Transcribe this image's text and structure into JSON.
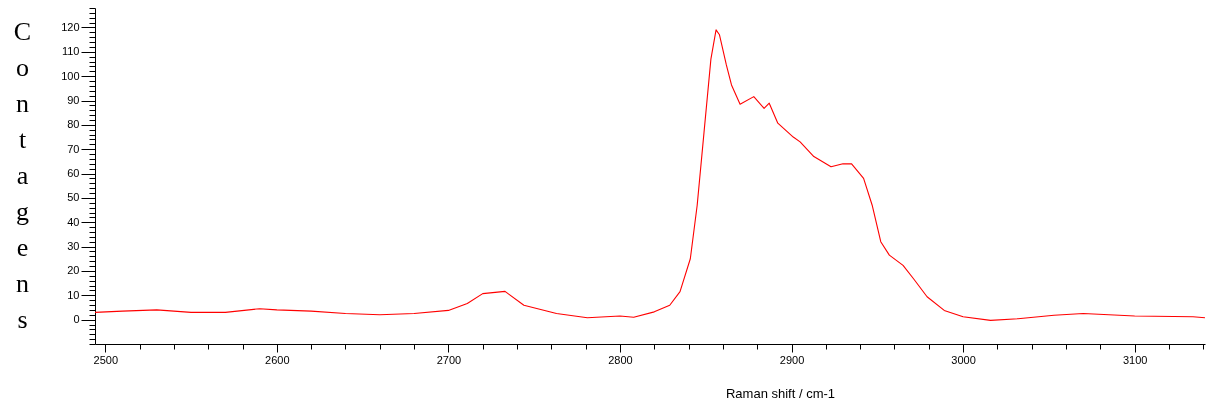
{
  "chart_data": {
    "type": "line",
    "xlabel": "Raman shift / cm-1",
    "ylabel": "Contagens",
    "x": [
      2494,
      2510,
      2530,
      2550,
      2570,
      2590,
      2600,
      2620,
      2640,
      2660,
      2680,
      2700,
      2711,
      2720,
      2733,
      2744,
      2763,
      2781,
      2800,
      2808,
      2820,
      2829,
      2835,
      2841,
      2845,
      2849,
      2853,
      2856,
      2858,
      2862,
      2865,
      2870,
      2878,
      2884,
      2887,
      2892,
      2901,
      2905,
      2913,
      2923,
      2930,
      2935,
      2942,
      2947,
      2952,
      2957,
      2965,
      2971,
      2979,
      2989,
      3000,
      3016,
      3032,
      3053,
      3070,
      3100,
      3134,
      3141
    ],
    "series": [
      {
        "color": "#ff0000",
        "values": [
          3,
          3.5,
          4,
          3,
          3,
          4.5,
          4,
          3.5,
          2.5,
          2,
          2.5,
          3.8,
          6.6,
          10.7,
          11.6,
          5.9,
          2.5,
          0.8,
          1.5,
          1,
          3.2,
          5.9,
          11.5,
          25,
          47,
          77,
          107,
          119,
          117,
          104.6,
          96.4,
          88.5,
          91.6,
          86.8,
          88.9,
          80.7,
          75,
          73,
          67,
          62.8,
          64,
          64,
          58,
          47,
          32,
          26.5,
          22.3,
          16.9,
          9.4,
          3.8,
          1.2,
          -0.3,
          0.4,
          1.8,
          2.5,
          1.5,
          1.2,
          0.8
        ]
      }
    ],
    "xlim": [
      2494,
      3141
    ],
    "ylim": [
      -10,
      128
    ],
    "xticks": [
      2500,
      {
        "value": 2520,
        "label": null
      },
      {
        "value": 2540,
        "label": null
      },
      {
        "value": 2560,
        "label": null
      },
      {
        "value": 2580,
        "label": null
      },
      2600,
      {
        "value": 2620,
        "label": null
      },
      {
        "value": 2640,
        "label": null
      },
      {
        "value": 2660,
        "label": null
      },
      {
        "value": 2680,
        "label": null
      },
      2700,
      {
        "value": 2720,
        "label": null
      },
      {
        "value": 2740,
        "label": null
      },
      {
        "value": 2760,
        "label": null
      },
      {
        "value": 2780,
        "label": null
      },
      2800,
      {
        "value": 2820,
        "label": null
      },
      {
        "value": 2840,
        "label": null
      },
      {
        "value": 2860,
        "label": null
      },
      {
        "value": 2880,
        "label": null
      },
      2900,
      {
        "value": 2920,
        "label": null
      },
      {
        "value": 2940,
        "label": null
      },
      {
        "value": 2960,
        "label": null
      },
      {
        "value": 2980,
        "label": null
      },
      3000,
      {
        "value": 3020,
        "label": null
      },
      {
        "value": 3040,
        "label": null
      },
      {
        "value": 3060,
        "label": null
      },
      {
        "value": 3080,
        "label": null
      },
      3100,
      {
        "value": 3120,
        "label": null
      },
      {
        "value": 3140,
        "label": null
      }
    ],
    "yticks": [
      {
        "value": -10,
        "label": null
      },
      {
        "value": -8,
        "label": null
      },
      {
        "value": -6,
        "label": null
      },
      {
        "value": -4,
        "label": null
      },
      {
        "value": -2,
        "label": null
      },
      0,
      {
        "value": 2,
        "label": null
      },
      {
        "value": 4,
        "label": null
      },
      {
        "value": 6,
        "label": null
      },
      {
        "value": 8,
        "label": null
      },
      10,
      {
        "value": 12,
        "label": null
      },
      {
        "value": 14,
        "label": null
      },
      {
        "value": 16,
        "label": null
      },
      {
        "value": 18,
        "label": null
      },
      20,
      {
        "value": 22,
        "label": null
      },
      {
        "value": 24,
        "label": null
      },
      {
        "value": 26,
        "label": null
      },
      {
        "value": 28,
        "label": null
      },
      30,
      {
        "value": 32,
        "label": null
      },
      {
        "value": 34,
        "label": null
      },
      {
        "value": 36,
        "label": null
      },
      {
        "value": 38,
        "label": null
      },
      40,
      {
        "value": 42,
        "label": null
      },
      {
        "value": 44,
        "label": null
      },
      {
        "value": 46,
        "label": null
      },
      {
        "value": 48,
        "label": null
      },
      50,
      {
        "value": 52,
        "label": null
      },
      {
        "value": 54,
        "label": null
      },
      {
        "value": 56,
        "label": null
      },
      {
        "value": 58,
        "label": null
      },
      60,
      {
        "value": 62,
        "label": null
      },
      {
        "value": 64,
        "label": null
      },
      {
        "value": 66,
        "label": null
      },
      {
        "value": 68,
        "label": null
      },
      70,
      {
        "value": 72,
        "label": null
      },
      {
        "value": 74,
        "label": null
      },
      {
        "value": 76,
        "label": null
      },
      {
        "value": 78,
        "label": null
      },
      80,
      {
        "value": 82,
        "label": null
      },
      {
        "value": 84,
        "label": null
      },
      {
        "value": 86,
        "label": null
      },
      {
        "value": 88,
        "label": null
      },
      90,
      {
        "value": 92,
        "label": null
      },
      {
        "value": 94,
        "label": null
      },
      {
        "value": 96,
        "label": null
      },
      {
        "value": 98,
        "label": null
      },
      100,
      {
        "value": 102,
        "label": null
      },
      {
        "value": 104,
        "label": null
      },
      {
        "value": 106,
        "label": null
      },
      {
        "value": 108,
        "label": null
      },
      110,
      {
        "value": 112,
        "label": null
      },
      {
        "value": 114,
        "label": null
      },
      {
        "value": 116,
        "label": null
      },
      {
        "value": 118,
        "label": null
      },
      120,
      {
        "value": 122,
        "label": null
      },
      {
        "value": 124,
        "label": null
      },
      {
        "value": 126,
        "label": null
      },
      {
        "value": 128,
        "label": null
      }
    ],
    "grid": false
  }
}
